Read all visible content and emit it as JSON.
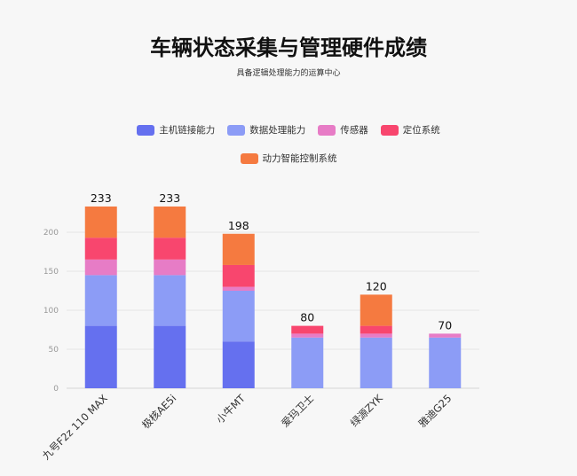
{
  "chart_data": {
    "type": "bar",
    "stacked": true,
    "title": "车辆状态采集与管理硬件成绩",
    "subtitle": "具备逻辑处理能力的运算中心",
    "categories": [
      "九号F2z 110 MAX",
      "极核AE5i",
      "小牛MT",
      "爱玛卫士",
      "绿源ZYK",
      "雅迪G25"
    ],
    "series": [
      {
        "name": "主机链接能力",
        "color": "#6570ef",
        "values": [
          80,
          80,
          60,
          0,
          0,
          0
        ]
      },
      {
        "name": "数据处理能力",
        "color": "#8c9cf6",
        "values": [
          65,
          65,
          65,
          65,
          65,
          65
        ]
      },
      {
        "name": "传感器",
        "color": "#e77cc6",
        "values": [
          20,
          20,
          5,
          5,
          5,
          5
        ]
      },
      {
        "name": "定位系统",
        "color": "#f8466e",
        "values": [
          28,
          28,
          28,
          10,
          10,
          0
        ]
      },
      {
        "name": "动力智能控制系统",
        "color": "#f57a40",
        "values": [
          40,
          40,
          40,
          0,
          40,
          0
        ]
      }
    ],
    "totals": [
      233,
      233,
      198,
      80,
      120,
      70
    ],
    "yticks": [
      0,
      50,
      100,
      150,
      200
    ],
    "ylim": [
      0,
      250
    ],
    "grid": true,
    "legend_position": "top"
  }
}
